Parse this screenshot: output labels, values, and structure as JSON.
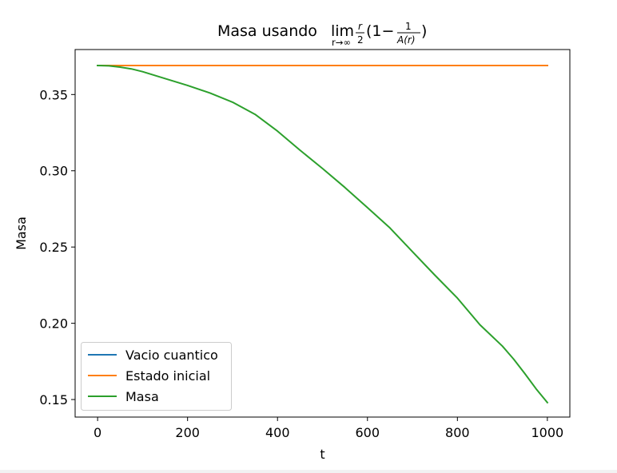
{
  "chart_data": {
    "type": "line",
    "title": {
      "prefix": "Masa usando ",
      "lim_word": "lim",
      "lim_sub": "r→∞",
      "frac_num": "r",
      "frac_den": "2",
      "paren_open": "(1−",
      "inner_num": "1",
      "inner_den": "A(r)",
      "paren_close": ")"
    },
    "xlabel": "t",
    "ylabel": "Masa",
    "xlim": [
      -50,
      1050
    ],
    "ylim": [
      0.1385,
      0.3795
    ],
    "xticks": [
      0,
      200,
      400,
      600,
      800,
      1000
    ],
    "xtick_labels": [
      "0",
      "200",
      "400",
      "600",
      "800",
      "1000"
    ],
    "yticks": [
      0.15,
      0.2,
      0.25,
      0.3,
      0.35
    ],
    "ytick_labels": [
      "0.15",
      "0.20",
      "0.25",
      "0.30",
      "0.35"
    ],
    "grid": false,
    "legend_position": "lower-left",
    "series": [
      {
        "name": "Vacio cuantico",
        "color": "#1f77b4",
        "x": [
          0,
          1000
        ],
        "y": [
          0.369,
          0.369
        ]
      },
      {
        "name": "Estado inicial",
        "color": "#ff7f0e",
        "x": [
          0,
          1000
        ],
        "y": [
          0.369,
          0.369
        ]
      },
      {
        "name": "Masa",
        "color": "#2ca02c",
        "x": [
          0,
          25,
          50,
          75,
          100,
          150,
          200,
          250,
          300,
          350,
          400,
          450,
          500,
          550,
          600,
          650,
          700,
          750,
          800,
          850,
          900,
          925,
          950,
          975,
          1000
        ],
        "y": [
          0.369,
          0.3688,
          0.368,
          0.3668,
          0.365,
          0.3605,
          0.356,
          0.351,
          0.345,
          0.337,
          0.326,
          0.3135,
          0.3015,
          0.289,
          0.2758,
          0.2625,
          0.247,
          0.2315,
          0.2165,
          0.199,
          0.185,
          0.1765,
          0.167,
          0.157,
          0.148
        ]
      }
    ]
  }
}
